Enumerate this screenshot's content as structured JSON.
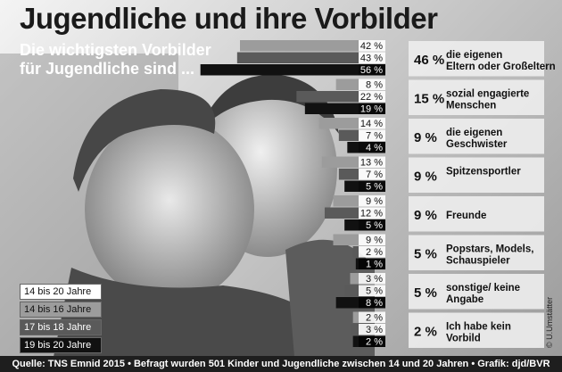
{
  "title": "Jugendliche und ihre Vorbilder",
  "subtitle": "Die wichtigsten Vorbilder für Jugendliche sind ...",
  "footer": "Quelle: TNS Emnid 2015 • Befragt wurden 501 Kinder und Jugendliche zwischen 14 und 20 Jahren • Grafik: djd/BVR",
  "credit": "© U.Umstätter",
  "colors": {
    "series_14_16": "#9c9c9c",
    "series_17_18": "#5a5a5a",
    "series_19_20": "#111111",
    "panel": "#ededed"
  },
  "chart_data": {
    "type": "bar",
    "orientation": "horizontal",
    "title": "Jugendliche und ihre Vorbilder",
    "subtitle": "Die wichtigsten Vorbilder für Jugendliche sind ...",
    "categories": [
      "die eigenen Eltern oder Großeltern",
      "sozial engagierte Menschen",
      "die eigenen Geschwister",
      "Spitzensportler",
      "Freunde",
      "Popstars, Models, Schauspieler",
      "sonstige/ keine Angabe",
      "Ich habe kein Vorbild"
    ],
    "totals": {
      "name": "14 bis 20 Jahre",
      "values": [
        46,
        15,
        9,
        9,
        9,
        5,
        5,
        2
      ]
    },
    "series": [
      {
        "name": "14 bis 16 Jahre",
        "values": [
          42,
          8,
          14,
          13,
          9,
          9,
          3,
          2
        ]
      },
      {
        "name": "17 bis 18 Jahre",
        "values": [
          43,
          22,
          7,
          7,
          12,
          2,
          5,
          3
        ]
      },
      {
        "name": "19 bis 20 Jahre",
        "values": [
          56,
          19,
          4,
          5,
          5,
          1,
          8,
          2
        ]
      }
    ],
    "unit": "%",
    "legend_position": "bottom-left"
  }
}
